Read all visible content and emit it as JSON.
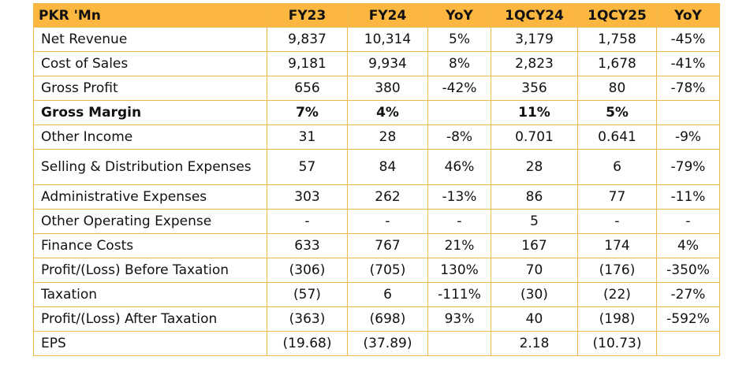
{
  "table": {
    "headers": [
      "PKR 'Mn",
      "FY23",
      "FY24",
      "YoY",
      "1QCY24",
      "1QCY25",
      "YoY"
    ],
    "rows": [
      {
        "label": "Net Revenue",
        "values": [
          "9,837",
          "10,314",
          "5%",
          "3,179",
          "1,758",
          "-45%"
        ]
      },
      {
        "label": "Cost of Sales",
        "values": [
          "9,181",
          "9,934",
          "8%",
          "2,823",
          "1,678",
          "-41%"
        ]
      },
      {
        "label": "Gross Profit",
        "values": [
          "656",
          "380",
          "-42%",
          "356",
          "80",
          "-78%"
        ]
      },
      {
        "label": "Gross Margin",
        "values": [
          "7%",
          "4%",
          "",
          "11%",
          "5%",
          ""
        ]
      },
      {
        "label": "Other Income",
        "values": [
          "31",
          "28",
          "-8%",
          "0.701",
          "0.641",
          "-9%"
        ]
      },
      {
        "label": "Selling & Distribution Expenses",
        "values": [
          "57",
          "84",
          "46%",
          "28",
          "6",
          "-79%"
        ]
      },
      {
        "label": "Administrative Expenses",
        "values": [
          "303",
          "262",
          "-13%",
          "86",
          "77",
          "-11%"
        ]
      },
      {
        "label": "Other Operating Expense",
        "values": [
          "-",
          "-",
          "-",
          "5",
          "-",
          "-"
        ]
      },
      {
        "label": "Finance Costs",
        "values": [
          "633",
          "767",
          "21%",
          "167",
          "174",
          "4%"
        ]
      },
      {
        "label": "Profit/(Loss) Before Taxation",
        "values": [
          "(306)",
          "(705)",
          "130%",
          "70",
          "(176)",
          "-350%"
        ]
      },
      {
        "label": "Taxation",
        "values": [
          "(57)",
          "6",
          "-111%",
          "(30)",
          "(22)",
          "-27%"
        ]
      },
      {
        "label": "Profit/(Loss) After Taxation",
        "values": [
          "(363)",
          "(698)",
          "93%",
          "40",
          "(198)",
          "-592%"
        ]
      },
      {
        "label": "EPS",
        "values": [
          "(19.68)",
          "(37.89)",
          "",
          "2.18",
          "(10.73)",
          ""
        ]
      }
    ]
  },
  "colors": {
    "header_bg": "#fbb73f",
    "border": "#f0b84a"
  }
}
